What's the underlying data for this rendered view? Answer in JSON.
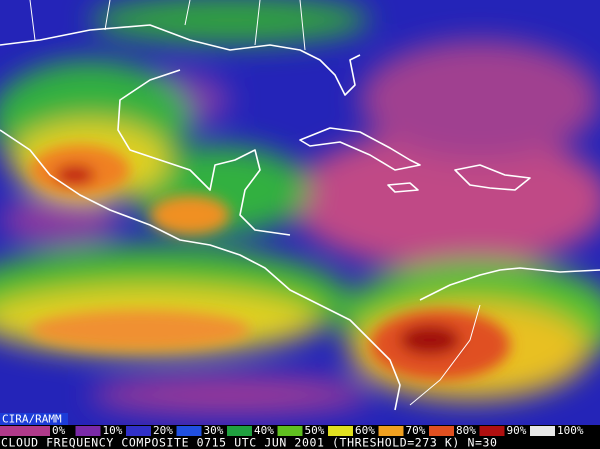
{
  "header": {
    "credit": "CIRA/RAMM"
  },
  "legend": {
    "labels": [
      "0%",
      "10%",
      "20%",
      "30%",
      "40%",
      "50%",
      "60%",
      "70%",
      "80%",
      "90%",
      "100%"
    ]
  },
  "footer": {
    "caption": "CLOUD FREQUENCY COMPOSITE 0715 UTC JUN 2001 (THRESHOLD=273 K) N=30"
  }
}
